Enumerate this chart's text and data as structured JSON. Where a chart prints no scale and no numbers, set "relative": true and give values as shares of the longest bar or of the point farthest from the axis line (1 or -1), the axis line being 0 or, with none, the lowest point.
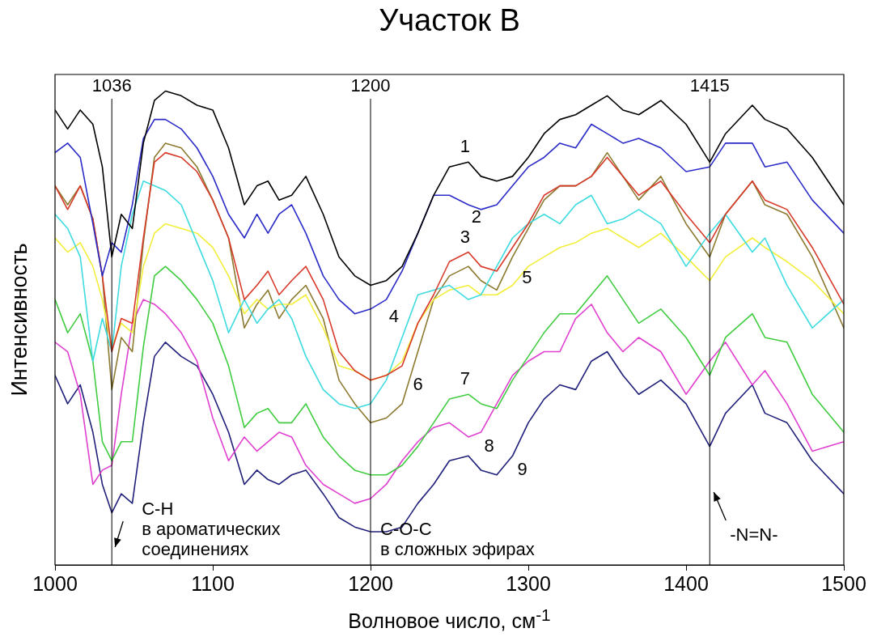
{
  "chart_data": {
    "type": "line",
    "title": "Участок В",
    "xlabel": "Волновое число, см$^{-1}$",
    "ylabel": "Интенсивность",
    "relative": true,
    "xlim": [
      1000,
      1500
    ],
    "xticks": [
      1000,
      1100,
      1200,
      1300,
      1400,
      1500
    ],
    "grid": false,
    "legend": false,
    "marker": "none",
    "line_style": "solid",
    "x": [
      1000,
      1008,
      1016,
      1024,
      1030,
      1036,
      1042,
      1049,
      1056,
      1063,
      1070,
      1080,
      1090,
      1100,
      1110,
      1120,
      1128,
      1135,
      1142,
      1150,
      1159,
      1170,
      1180,
      1190,
      1200,
      1210,
      1220,
      1230,
      1240,
      1250,
      1262,
      1270,
      1280,
      1290,
      1300,
      1310,
      1320,
      1330,
      1340,
      1350,
      1360,
      1370,
      1384,
      1400,
      1415,
      1425,
      1442,
      1450,
      1464,
      1480,
      1500
    ],
    "series": [
      {
        "name": "1",
        "color": "#000000",
        "values": [
          0.96,
          0.92,
          0.96,
          0.93,
          0.84,
          0.65,
          0.74,
          0.71,
          0.89,
          0.98,
          1.0,
          0.99,
          0.97,
          0.96,
          0.88,
          0.76,
          0.8,
          0.81,
          0.77,
          0.78,
          0.82,
          0.74,
          0.65,
          0.61,
          0.59,
          0.6,
          0.63,
          0.7,
          0.78,
          0.84,
          0.85,
          0.82,
          0.81,
          0.82,
          0.86,
          0.91,
          0.94,
          0.95,
          0.97,
          0.99,
          0.96,
          0.95,
          0.98,
          0.93,
          0.85,
          0.91,
          0.97,
          0.94,
          0.92,
          0.86,
          0.76
        ]
      },
      {
        "name": "2",
        "color": "#2b2bc8",
        "values": [
          0.87,
          0.89,
          0.86,
          0.72,
          0.61,
          0.68,
          0.66,
          0.76,
          0.9,
          0.94,
          0.94,
          0.92,
          0.88,
          0.82,
          0.74,
          0.69,
          0.74,
          0.7,
          0.74,
          0.76,
          0.7,
          0.61,
          0.56,
          0.53,
          0.54,
          0.56,
          0.62,
          0.7,
          0.78,
          0.78,
          0.76,
          0.75,
          0.76,
          0.8,
          0.84,
          0.86,
          0.89,
          0.88,
          0.93,
          0.91,
          0.89,
          0.9,
          0.88,
          0.83,
          0.84,
          0.89,
          0.89,
          0.84,
          0.85,
          0.77,
          0.7
        ]
      },
      {
        "name": "3",
        "color": "#d83a2a",
        "values": [
          0.8,
          0.75,
          0.8,
          0.73,
          0.61,
          0.45,
          0.52,
          0.51,
          0.69,
          0.85,
          0.87,
          0.86,
          0.83,
          0.77,
          0.69,
          0.56,
          0.59,
          0.62,
          0.57,
          0.6,
          0.63,
          0.56,
          0.45,
          0.41,
          0.39,
          0.4,
          0.42,
          0.51,
          0.57,
          0.64,
          0.66,
          0.63,
          0.62,
          0.67,
          0.72,
          0.78,
          0.8,
          0.8,
          0.82,
          0.86,
          0.82,
          0.78,
          0.81,
          0.74,
          0.68,
          0.74,
          0.81,
          0.77,
          0.75,
          0.67,
          0.55
        ]
      },
      {
        "name": "4",
        "color": "#3edbe0",
        "values": [
          0.74,
          0.71,
          0.65,
          0.43,
          0.52,
          0.45,
          0.63,
          0.74,
          0.81,
          0.8,
          0.79,
          0.76,
          0.68,
          0.6,
          0.49,
          0.56,
          0.51,
          0.54,
          0.56,
          0.52,
          0.44,
          0.37,
          0.34,
          0.33,
          0.34,
          0.39,
          0.48,
          0.57,
          0.58,
          0.59,
          0.56,
          0.57,
          0.63,
          0.69,
          0.72,
          0.74,
          0.72,
          0.76,
          0.78,
          0.72,
          0.73,
          0.75,
          0.72,
          0.63,
          0.7,
          0.74,
          0.66,
          0.69,
          0.59,
          0.5,
          0.56
        ]
      },
      {
        "name": "5",
        "color": "#f2ee3a",
        "values": [
          0.69,
          0.66,
          0.68,
          0.63,
          0.56,
          0.46,
          0.51,
          0.49,
          0.63,
          0.7,
          0.72,
          0.71,
          0.7,
          0.67,
          0.61,
          0.53,
          0.56,
          0.54,
          0.55,
          0.55,
          0.57,
          0.5,
          0.42,
          0.41,
          0.39,
          0.4,
          0.43,
          0.51,
          0.56,
          0.58,
          0.59,
          0.57,
          0.57,
          0.59,
          0.63,
          0.65,
          0.67,
          0.68,
          0.7,
          0.71,
          0.69,
          0.67,
          0.7,
          0.65,
          0.6,
          0.65,
          0.69,
          0.67,
          0.64,
          0.6,
          0.53
        ]
      },
      {
        "name": "6",
        "color": "#8c7a30",
        "values": [
          0.8,
          0.76,
          0.8,
          0.73,
          0.61,
          0.37,
          0.48,
          0.45,
          0.68,
          0.86,
          0.89,
          0.88,
          0.84,
          0.77,
          0.69,
          0.5,
          0.55,
          0.58,
          0.52,
          0.56,
          0.59,
          0.52,
          0.39,
          0.34,
          0.3,
          0.31,
          0.34,
          0.45,
          0.56,
          0.61,
          0.63,
          0.6,
          0.58,
          0.65,
          0.71,
          0.77,
          0.8,
          0.8,
          0.82,
          0.87,
          0.82,
          0.77,
          0.82,
          0.72,
          0.65,
          0.74,
          0.81,
          0.76,
          0.74,
          0.65,
          0.5
        ]
      },
      {
        "name": "7",
        "color": "#40cc40",
        "values": [
          0.56,
          0.49,
          0.53,
          0.43,
          0.26,
          0.22,
          0.26,
          0.26,
          0.46,
          0.61,
          0.63,
          0.6,
          0.56,
          0.51,
          0.42,
          0.29,
          0.32,
          0.33,
          0.3,
          0.3,
          0.34,
          0.27,
          0.23,
          0.2,
          0.19,
          0.19,
          0.21,
          0.25,
          0.3,
          0.35,
          0.36,
          0.34,
          0.33,
          0.39,
          0.44,
          0.49,
          0.53,
          0.53,
          0.57,
          0.61,
          0.56,
          0.51,
          0.54,
          0.48,
          0.4,
          0.48,
          0.53,
          0.48,
          0.47,
          0.36,
          0.28
        ]
      },
      {
        "name": "8",
        "color": "#e040d0",
        "values": [
          0.47,
          0.45,
          0.36,
          0.17,
          0.2,
          0.21,
          0.36,
          0.51,
          0.56,
          0.55,
          0.53,
          0.49,
          0.43,
          0.31,
          0.22,
          0.27,
          0.24,
          0.26,
          0.28,
          0.27,
          0.21,
          0.17,
          0.15,
          0.13,
          0.14,
          0.17,
          0.22,
          0.26,
          0.29,
          0.3,
          0.27,
          0.28,
          0.34,
          0.4,
          0.43,
          0.45,
          0.45,
          0.52,
          0.55,
          0.49,
          0.45,
          0.48,
          0.45,
          0.36,
          0.43,
          0.47,
          0.38,
          0.41,
          0.34,
          0.24,
          0.26
        ]
      },
      {
        "name": "9",
        "color": "#20207a",
        "values": [
          0.4,
          0.34,
          0.38,
          0.28,
          0.17,
          0.11,
          0.15,
          0.13,
          0.3,
          0.44,
          0.47,
          0.44,
          0.42,
          0.36,
          0.28,
          0.17,
          0.2,
          0.18,
          0.17,
          0.19,
          0.2,
          0.15,
          0.1,
          0.08,
          0.07,
          0.07,
          0.08,
          0.13,
          0.17,
          0.22,
          0.23,
          0.2,
          0.19,
          0.23,
          0.3,
          0.35,
          0.38,
          0.37,
          0.43,
          0.45,
          0.4,
          0.36,
          0.39,
          0.34,
          0.25,
          0.32,
          0.38,
          0.32,
          0.3,
          0.22,
          0.15
        ]
      }
    ],
    "ref_lines": [
      {
        "axis": "x",
        "value": 1036,
        "label": "1036",
        "color": "#000000"
      },
      {
        "axis": "x",
        "value": 1200,
        "label": "1200",
        "color": "#000000"
      },
      {
        "axis": "x",
        "value": 1415,
        "label": "1415",
        "color": "#000000"
      }
    ],
    "annotations": [
      {
        "text": "C-H\nв ароматических\nсоединениях",
        "x": 1036
      },
      {
        "text": "C-O-C\nв сложных эфирах",
        "x": 1200
      },
      {
        "text": "-N=N-",
        "x": 1415
      }
    ]
  }
}
